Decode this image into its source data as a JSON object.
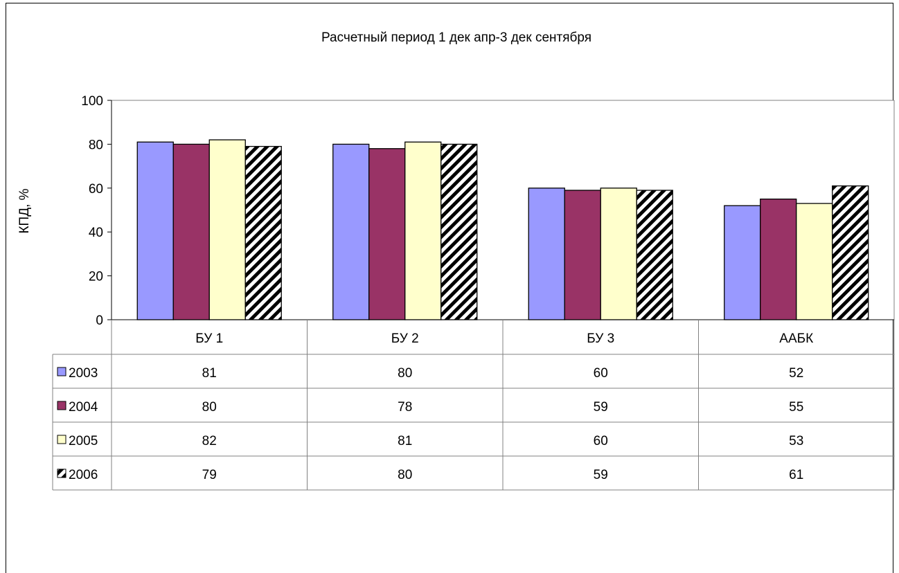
{
  "chart_data": {
    "type": "bar",
    "title": "Расчетный период 1 дек апр-3 дек сентября",
    "xlabel": "",
    "ylabel": "КПД, %",
    "ylim": [
      0,
      100
    ],
    "yticks": [
      0,
      20,
      40,
      60,
      80,
      100
    ],
    "grid": false,
    "legend": "data-table-left",
    "categories": [
      "БУ 1",
      "БУ 2",
      "БУ 3",
      "ААБК"
    ],
    "series": [
      {
        "name": "2003",
        "values": [
          81,
          80,
          60,
          52
        ],
        "color": "#9999ff",
        "pattern": "solid"
      },
      {
        "name": "2004",
        "values": [
          80,
          78,
          59,
          55
        ],
        "color": "#993366",
        "pattern": "solid"
      },
      {
        "name": "2005",
        "values": [
          82,
          81,
          60,
          53
        ],
        "color": "#ffffcc",
        "pattern": "solid"
      },
      {
        "name": "2006",
        "values": [
          79,
          80,
          59,
          61
        ],
        "color": "#000000",
        "pattern": "diagonal-hatch"
      }
    ]
  }
}
